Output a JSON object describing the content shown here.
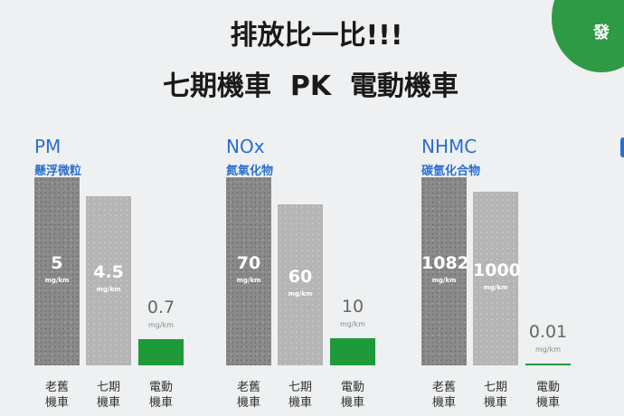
{
  "title_line1": "排放比一比!!!",
  "title_line2": "七期機車  PK  電動機車",
  "corner_text": "發",
  "colors": {
    "accent": "#1e9a3b",
    "label": "#2a6fcf"
  },
  "chart_data": [
    {
      "type": "bar",
      "title": "PM",
      "subtitle": "懸浮微粒",
      "categories": [
        "老舊機車",
        "七期機車",
        "電動機車"
      ],
      "category_lines": [
        [
          "老舊",
          "機車"
        ],
        [
          "七期",
          "機車"
        ],
        [
          "電動",
          "機車"
        ]
      ],
      "values": [
        5,
        4.5,
        0.7
      ],
      "labels": [
        "5",
        "4.5",
        "0.7"
      ],
      "unit": "mg/km"
    },
    {
      "type": "bar",
      "title": "NOx",
      "subtitle": "氮氧化物",
      "categories": [
        "老舊機車",
        "七期機車",
        "電動機車"
      ],
      "category_lines": [
        [
          "老舊",
          "機車"
        ],
        [
          "七期",
          "機車"
        ],
        [
          "電動",
          "機車"
        ]
      ],
      "values": [
        70,
        60,
        10
      ],
      "labels": [
        "70",
        "60",
        "10"
      ],
      "unit": "mg/km"
    },
    {
      "type": "bar",
      "title": "NHMC",
      "subtitle": "碳氫化合物",
      "categories": [
        "老舊機車",
        "七期機車",
        "電動機車"
      ],
      "category_lines": [
        [
          "老舊",
          "機車"
        ],
        [
          "七期",
          "機車"
        ],
        [
          "電動",
          "機車"
        ]
      ],
      "values": [
        1082,
        1000,
        0.01
      ],
      "labels": [
        "1082",
        "1000",
        "0.01"
      ],
      "unit": "mg/km"
    }
  ]
}
